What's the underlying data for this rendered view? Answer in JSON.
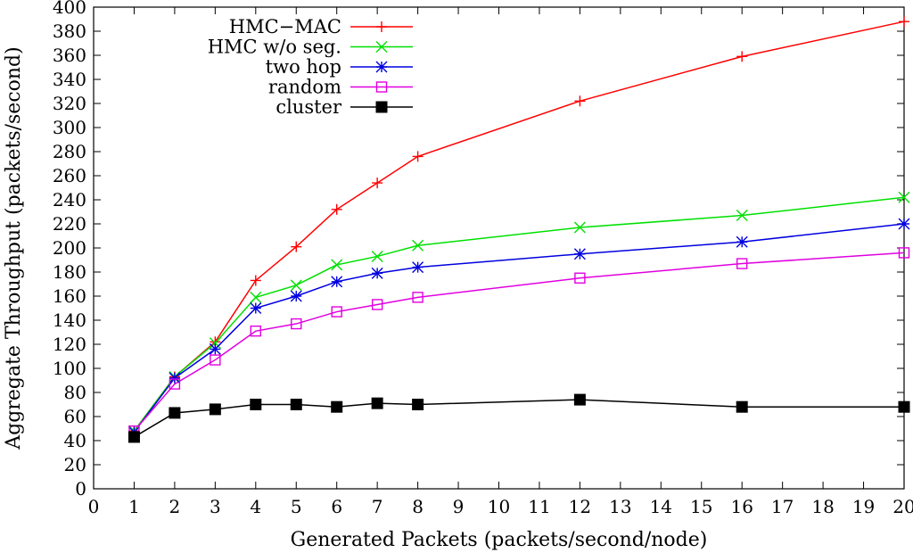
{
  "chart_data": {
    "type": "line",
    "title": "",
    "xlabel": "Generated Packets (packets/second/node)",
    "ylabel": "Aggregate Throughput (packets/second)",
    "xlim": [
      0,
      20
    ],
    "ylim": [
      0,
      400
    ],
    "xticks": [
      0,
      1,
      2,
      3,
      4,
      5,
      6,
      7,
      8,
      9,
      10,
      11,
      12,
      13,
      14,
      15,
      16,
      17,
      18,
      19,
      20
    ],
    "yticks": [
      0,
      20,
      40,
      60,
      80,
      100,
      120,
      140,
      160,
      180,
      200,
      220,
      240,
      260,
      280,
      300,
      320,
      340,
      360,
      380,
      400
    ],
    "grid": false,
    "legend_position": "top-left",
    "x": [
      1,
      2,
      3,
      4,
      5,
      6,
      7,
      8,
      12,
      16,
      20
    ],
    "series": [
      {
        "name": "HMC−MAC",
        "color": "#ff0000",
        "marker": "plus",
        "values": [
          48,
          93,
          122,
          173,
          201,
          232,
          254,
          276,
          322,
          359,
          388
        ]
      },
      {
        "name": "HMC w/o seg.",
        "color": "#00e000",
        "marker": "cross",
        "values": [
          48,
          93,
          121,
          159,
          169,
          186,
          193,
          202,
          217,
          227,
          242
        ]
      },
      {
        "name": "two hop",
        "color": "#0000e0",
        "marker": "star",
        "values": [
          47,
          92,
          116,
          150,
          160,
          172,
          179,
          184,
          195,
          205,
          220
        ]
      },
      {
        "name": "random",
        "color": "#e000e0",
        "marker": "open-square",
        "values": [
          48,
          87,
          107,
          131,
          137,
          147,
          153,
          159,
          175,
          187,
          196
        ]
      },
      {
        "name": "cluster",
        "color": "#000000",
        "marker": "filled-square",
        "values": [
          43,
          63,
          66,
          70,
          70,
          68,
          71,
          70,
          74,
          68,
          68
        ]
      }
    ]
  }
}
